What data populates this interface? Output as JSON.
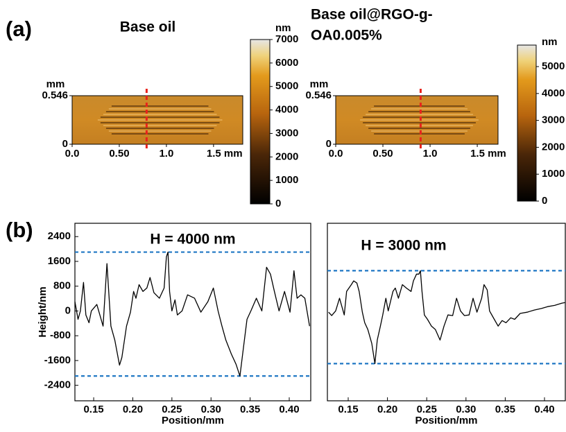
{
  "panel_labels": [
    "(a)",
    "(b)"
  ],
  "chart_data": [
    {
      "type": "heatmap",
      "title": "Base oil",
      "y_label": "mm",
      "colorbar_label": "nm",
      "xlim": [
        0,
        1.81
      ],
      "xticks": [
        {
          "value": 0,
          "label": "0.0"
        },
        {
          "value": 0.5,
          "label": "0.50"
        },
        {
          "value": 1.0,
          "label": "1.0"
        },
        {
          "value": 1.5,
          "label": "1.5 mm"
        }
      ],
      "ylim": [
        0,
        0.546
      ],
      "yticks": [
        0,
        0.546
      ],
      "colorbar_lim": [
        0,
        7000
      ],
      "colorbar_ticks": [
        0,
        1000,
        2000,
        3000,
        4000,
        5000,
        6000,
        7000
      ],
      "section_x": 0.79,
      "section_color": "#e8231c"
    },
    {
      "type": "heatmap",
      "title_lines": [
        "Base oil@RGO-g-",
        "OA0.005%"
      ],
      "y_label": "mm",
      "colorbar_label": "nm",
      "xlim": [
        0,
        1.72
      ],
      "xticks": [
        {
          "value": 0,
          "label": "0.0"
        },
        {
          "value": 0.5,
          "label": "0.50"
        },
        {
          "value": 1.0,
          "label": "1.0"
        },
        {
          "value": 1.5,
          "label": "1.5 mm"
        }
      ],
      "ylim": [
        0,
        0.546
      ],
      "yticks": [
        0,
        0.546
      ],
      "colorbar_lim": [
        0,
        5800
      ],
      "colorbar_ticks": [
        0,
        1000,
        2000,
        3000,
        4000,
        5000
      ],
      "section_x": 0.9,
      "section_color": "#e8231c"
    },
    {
      "type": "line",
      "annotation": "H = 4000 nm",
      "xlabel": "Position/mm",
      "ylabel": "Height/nm",
      "xlim": [
        0.126,
        0.4275
      ],
      "xticks": [
        0.15,
        {
          "value": 0.2,
          "label": "0.20"
        },
        0.25,
        {
          "value": 0.3,
          "label": "0.30"
        },
        0.35,
        {
          "value": 0.4,
          "label": "0.40"
        }
      ],
      "ylim": [
        -2900,
        2830
      ],
      "yticks": [
        2400,
        1600,
        800,
        0,
        -800,
        -1600,
        -2400
      ],
      "hlines": [
        1900,
        -2100
      ],
      "hline_color": "#1f77c4",
      "color": "#000000",
      "x": [
        0.126,
        0.13,
        0.133,
        0.137,
        0.14,
        0.144,
        0.147,
        0.154,
        0.162,
        0.167,
        0.172,
        0.177,
        0.183,
        0.186,
        0.192,
        0.197,
        0.201,
        0.204,
        0.208,
        0.213,
        0.218,
        0.222,
        0.227,
        0.234,
        0.24,
        0.243,
        0.245,
        0.247,
        0.25,
        0.254,
        0.257,
        0.263,
        0.27,
        0.279,
        0.287,
        0.296,
        0.303,
        0.309,
        0.314,
        0.319,
        0.326,
        0.332,
        0.337,
        0.341,
        0.346,
        0.351,
        0.358,
        0.365,
        0.371,
        0.376,
        0.381,
        0.387,
        0.394,
        0.401,
        0.406,
        0.41,
        0.415,
        0.42,
        0.426
      ],
      "values": [
        300,
        -270,
        0,
        920,
        -130,
        -380,
        0,
        210,
        -490,
        1530,
        -490,
        -940,
        -1750,
        -1500,
        -490,
        -40,
        630,
        410,
        850,
        630,
        740,
        1080,
        590,
        410,
        740,
        1750,
        1900,
        630,
        0,
        360,
        -130,
        0,
        520,
        410,
        -40,
        300,
        740,
        0,
        -490,
        -940,
        -1390,
        -1720,
        -2100,
        -1270,
        -270,
        0,
        410,
        0,
        1410,
        1190,
        630,
        0,
        630,
        -40,
        1300,
        410,
        520,
        410,
        -490
      ]
    },
    {
      "type": "line",
      "annotation": "H = 3000 nm",
      "xlabel": "Position/mm",
      "xlim": [
        0.1235,
        0.4265
      ],
      "xticks": [
        0.15,
        {
          "value": 0.2,
          "label": "0.20"
        },
        0.25,
        {
          "value": 0.3,
          "label": "0.30"
        },
        0.35,
        {
          "value": 0.4,
          "label": "0.40"
        }
      ],
      "ylim": [
        -2900,
        2830
      ],
      "hlines": [
        1300,
        -1700
      ],
      "hline_color": "#1f77c4",
      "color": "#000000",
      "x": [
        0.125,
        0.129,
        0.134,
        0.139,
        0.145,
        0.148,
        0.154,
        0.157,
        0.161,
        0.164,
        0.168,
        0.171,
        0.175,
        0.18,
        0.184,
        0.187,
        0.191,
        0.194,
        0.198,
        0.201,
        0.207,
        0.21,
        0.214,
        0.219,
        0.224,
        0.23,
        0.233,
        0.237,
        0.24,
        0.242,
        0.244,
        0.247,
        0.251,
        0.256,
        0.261,
        0.267,
        0.272,
        0.277,
        0.283,
        0.288,
        0.293,
        0.298,
        0.304,
        0.309,
        0.314,
        0.32,
        0.323,
        0.327,
        0.33,
        0.336,
        0.341,
        0.346,
        0.351,
        0.357,
        0.362,
        0.369,
        0.378,
        0.387,
        0.396,
        0.404,
        0.413,
        0.422,
        0.426
      ],
      "values": [
        -40,
        -150,
        0,
        410,
        -130,
        630,
        850,
        970,
        900,
        630,
        -40,
        -380,
        -600,
        -1050,
        -1700,
        -940,
        -490,
        -130,
        410,
        0,
        630,
        740,
        410,
        850,
        740,
        630,
        970,
        1190,
        1190,
        1300,
        630,
        -130,
        -270,
        -490,
        -600,
        -940,
        -490,
        -130,
        -150,
        410,
        0,
        -150,
        -130,
        410,
        -40,
        410,
        850,
        680,
        0,
        -270,
        -490,
        -310,
        -380,
        -220,
        -270,
        -80,
        -40,
        30,
        80,
        140,
        180,
        250,
        270
      ]
    }
  ]
}
